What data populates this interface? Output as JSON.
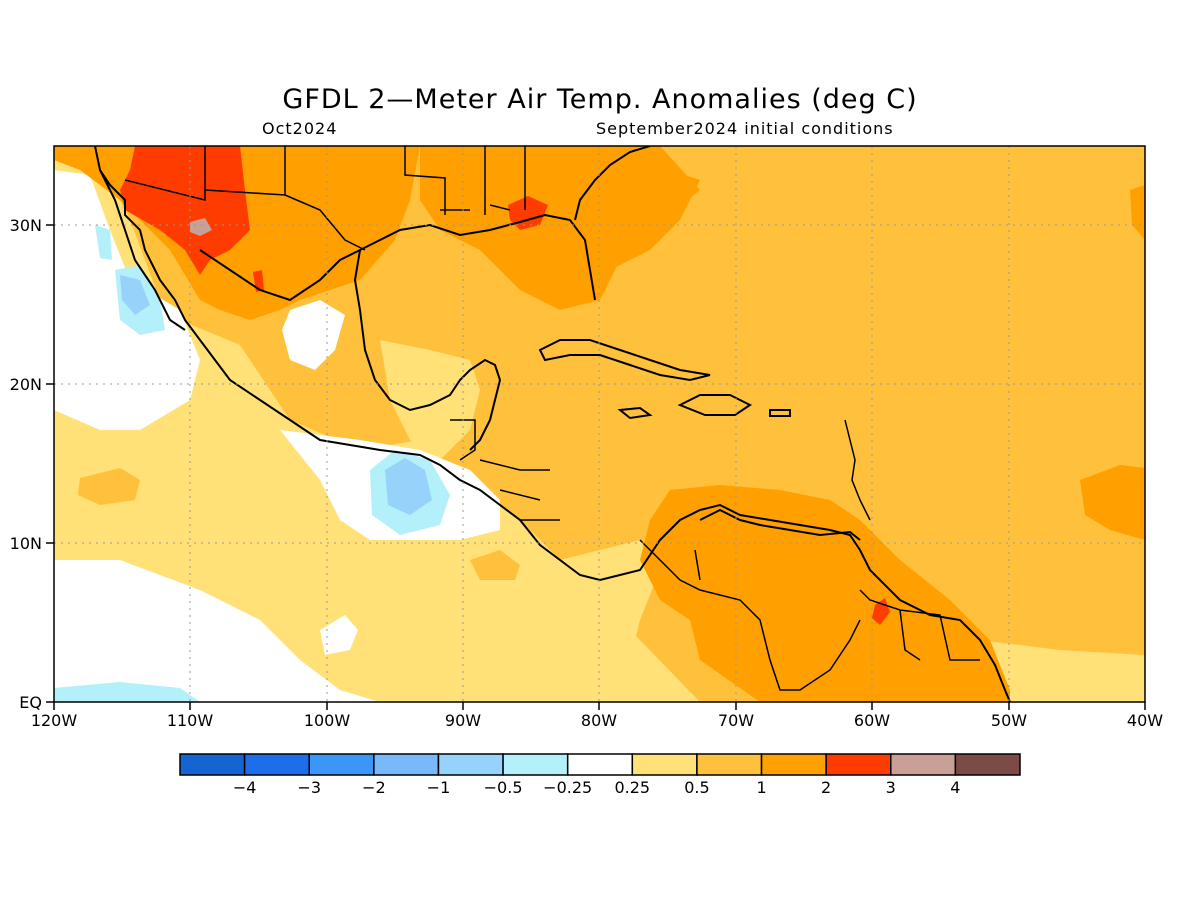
{
  "title": "GFDL 2—Meter Air Temp. Anomalies (deg C)",
  "valid_period": "Oct2024",
  "initial_conditions": "September2024 initial conditions",
  "map": {
    "lon_labels": [
      "120W",
      "110W",
      "100W",
      "90W",
      "80W",
      "70W",
      "60W",
      "50W",
      "40W"
    ],
    "lat_labels": [
      "EQ",
      "10N",
      "20N",
      "30N"
    ],
    "lon_range": [
      -120,
      -40
    ],
    "lat_range": [
      0,
      35
    ],
    "grid": "dotted"
  },
  "colorbar": {
    "colors": [
      "#1464d2",
      "#1e6eeb",
      "#3c96f5",
      "#78b9fa",
      "#96d2fa",
      "#b4f0fa",
      "#ffffff",
      "#ffe178",
      "#ffc03c",
      "#ffa000",
      "#ff3c00",
      "#c8a096",
      "#7d4b46"
    ],
    "labels": [
      "−4",
      "−3",
      "−2",
      "−1",
      "−0.5",
      "−0.25",
      "0.25",
      "0.5",
      "1",
      "2",
      "3",
      "4"
    ]
  },
  "palette": {
    "white": "#ffffff",
    "lightblue": "#b4f0fa",
    "blue": "#96d2fa",
    "yellow": "#ffe178",
    "lightorange": "#ffc03c",
    "orange": "#ffa000",
    "red": "#ff3c00",
    "pink": "#c8a096"
  }
}
